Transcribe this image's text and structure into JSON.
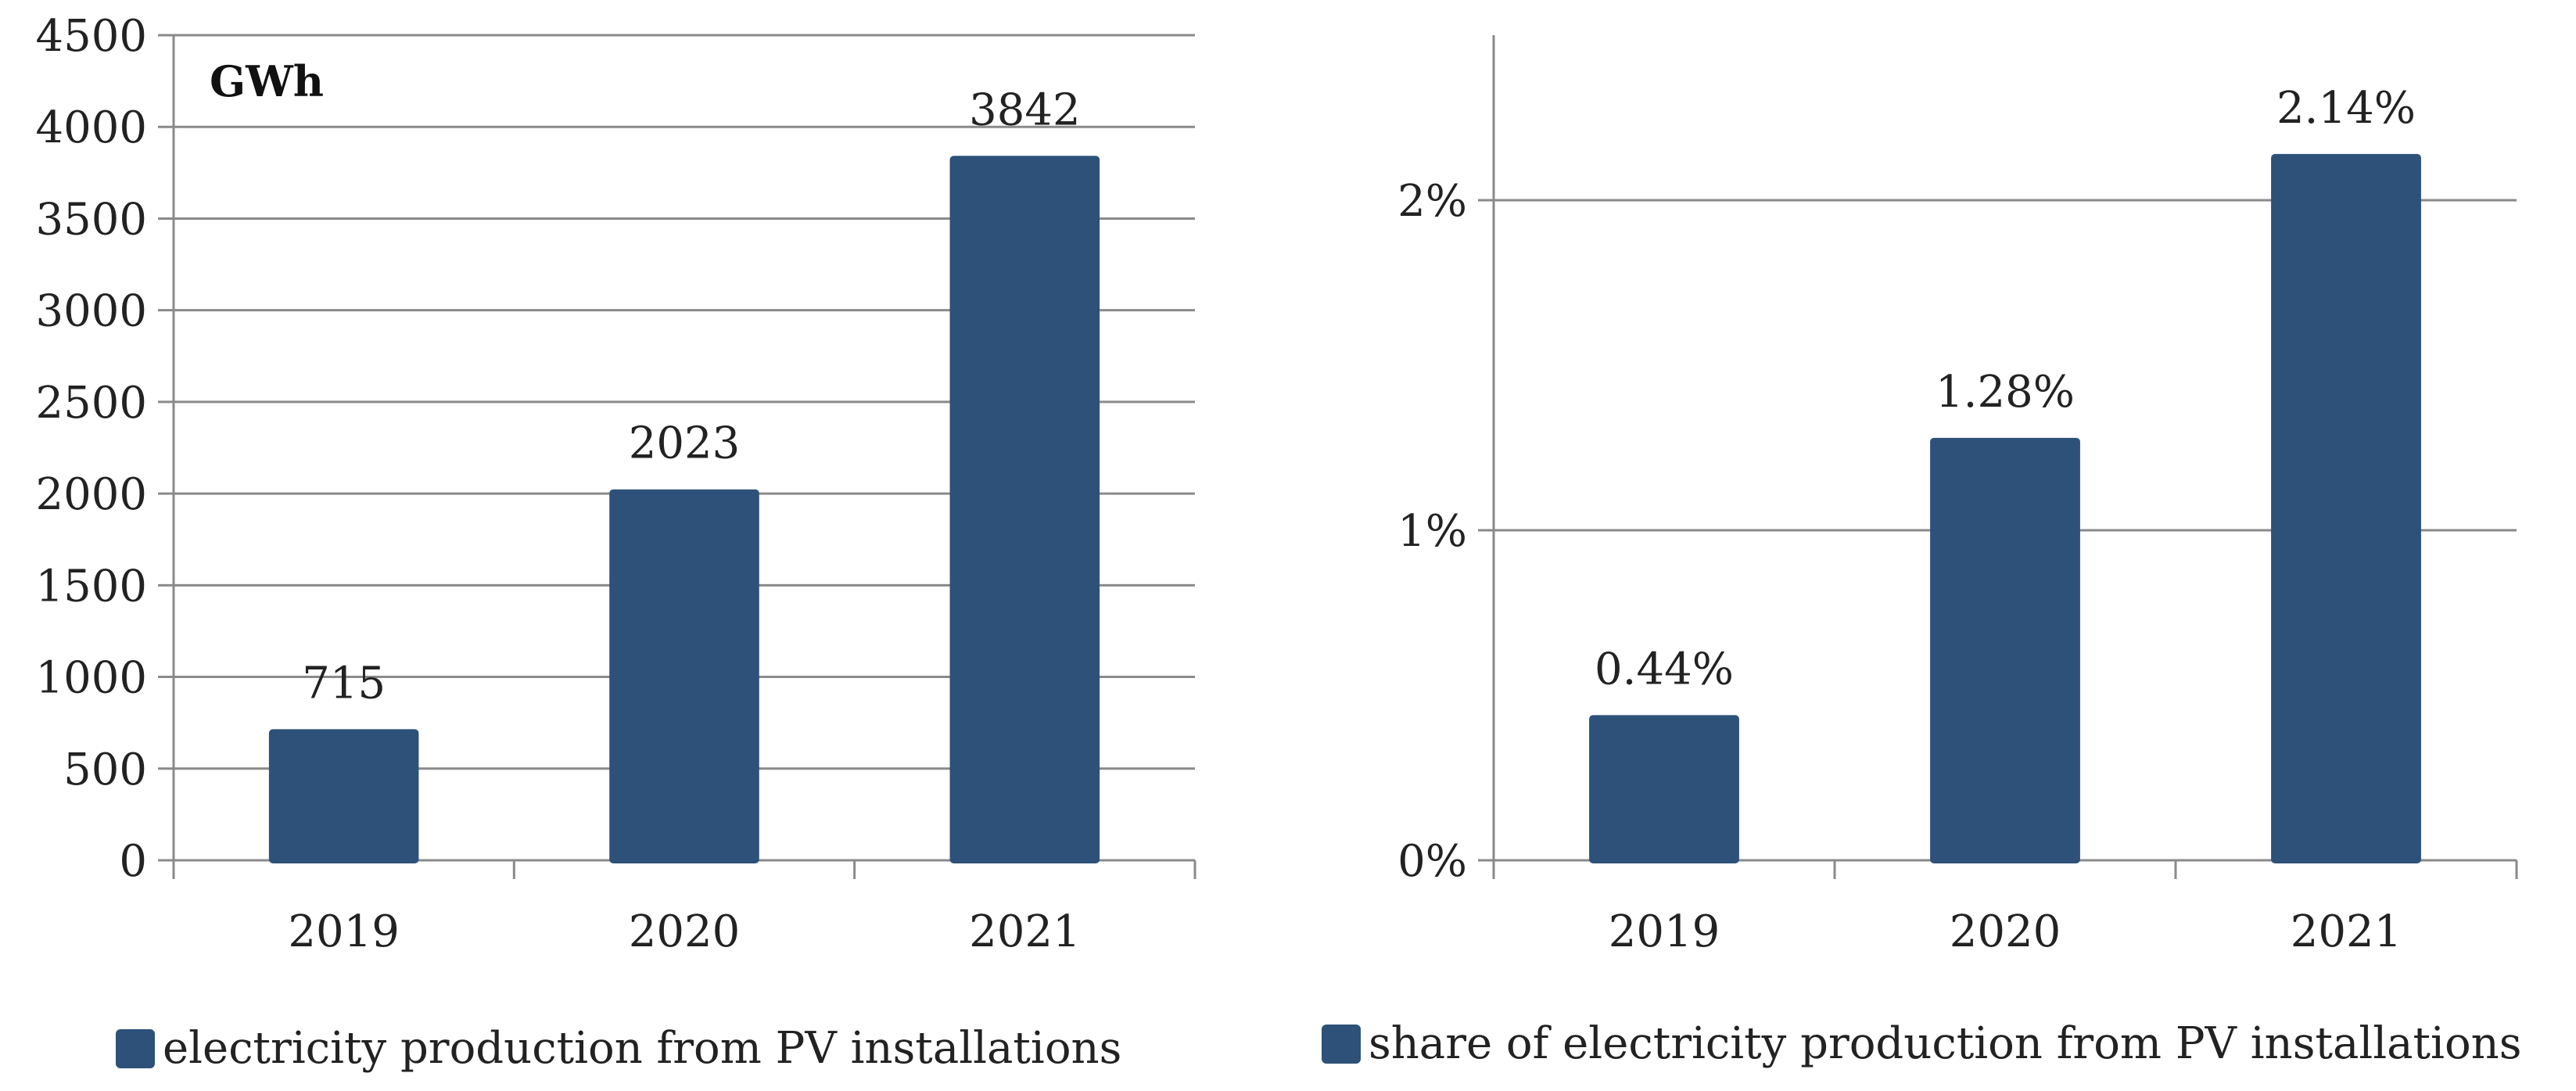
{
  "chart_data": [
    {
      "type": "bar",
      "title": "",
      "unit_label": "GWh",
      "categories": [
        "2019",
        "2020",
        "2021"
      ],
      "series": [
        {
          "name": "electricity production from PV installations",
          "values": [
            715,
            2023,
            3842
          ],
          "labels": [
            "715",
            "2023",
            "3842"
          ]
        }
      ],
      "xlabel": "",
      "ylabel": "",
      "ylim": [
        0,
        4500
      ],
      "yticks": [
        0,
        500,
        1000,
        1500,
        2000,
        2500,
        3000,
        3500,
        4000,
        4500
      ],
      "ytick_labels": [
        "0",
        "500",
        "1000",
        "1500",
        "2000",
        "2500",
        "3000",
        "3500",
        "4000",
        "4500"
      ],
      "grid": true,
      "legend_position": "bottom",
      "bar_color": "#2d5179"
    },
    {
      "type": "bar",
      "title": "",
      "categories": [
        "2019",
        "2020",
        "2021"
      ],
      "series": [
        {
          "name": "share of electricity production from PV installations",
          "values": [
            0.44,
            1.28,
            2.14
          ],
          "labels": [
            "0.44%",
            "1.28%",
            "2.14%"
          ]
        }
      ],
      "xlabel": "",
      "ylabel": "",
      "ylim": [
        0,
        2.5
      ],
      "yticks": [
        0,
        1,
        2
      ],
      "ytick_labels": [
        "0%",
        "1%",
        "2%"
      ],
      "grid": true,
      "legend_position": "bottom",
      "bar_color": "#2d5179"
    }
  ]
}
